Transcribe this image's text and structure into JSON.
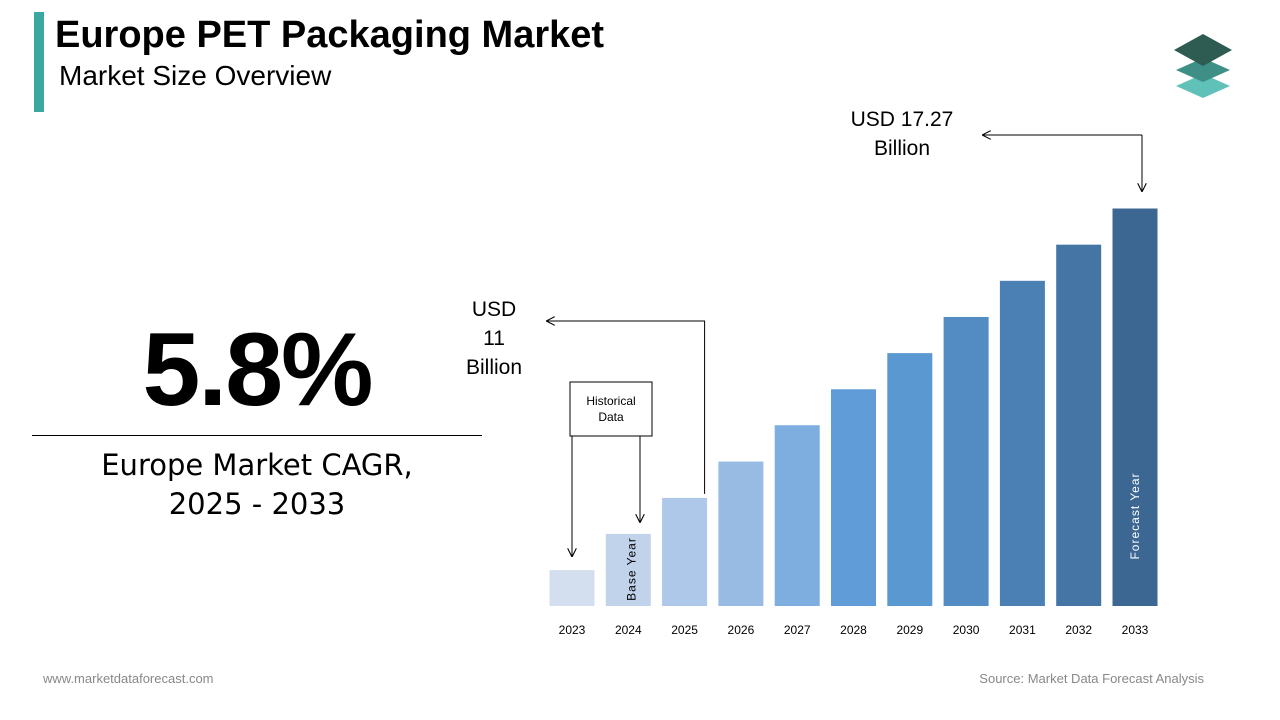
{
  "header": {
    "title": "Europe PET Packaging Market",
    "subtitle": "Market Size Overview",
    "accent_color": "#3aa8a0",
    "logo_icon": "stacked-layers-icon"
  },
  "cagr": {
    "value": "5.8%",
    "label_line1": "Europe Market CAGR,",
    "label_line2": "2025 - 2033"
  },
  "footer": {
    "website": "www.marketdataforecast.com",
    "source": "Source: Market Data Forecast Analysis"
  },
  "chart_data": {
    "type": "bar",
    "categories": [
      "2023",
      "2024",
      "2025",
      "2026",
      "2027",
      "2028",
      "2029",
      "2030",
      "2031",
      "2032",
      "2033"
    ],
    "values": [
      1.975,
      3.97,
      5.95,
      7.95,
      9.95,
      11.93,
      13.92,
      15.91,
      17.9,
      19.89,
      21.88
    ],
    "bar_colors": [
      "#d3deef",
      "#c1d3eb",
      "#adc8e8",
      "#97bbe3",
      "#7eaddf",
      "#5f9cd8",
      "#5a98d2",
      "#528cc2",
      "#4a80b4",
      "#4475a5",
      "#3b6792"
    ],
    "ylim": [
      0,
      24
    ],
    "annotations": {
      "start_value_label": [
        "USD",
        "11",
        "Billion"
      ],
      "end_value_label": [
        "USD 17.27",
        "Billion"
      ],
      "historical_label": [
        "Historical",
        "Data"
      ],
      "base_year_label": "Base Year",
      "forecast_year_label": "Forecast Year"
    }
  }
}
